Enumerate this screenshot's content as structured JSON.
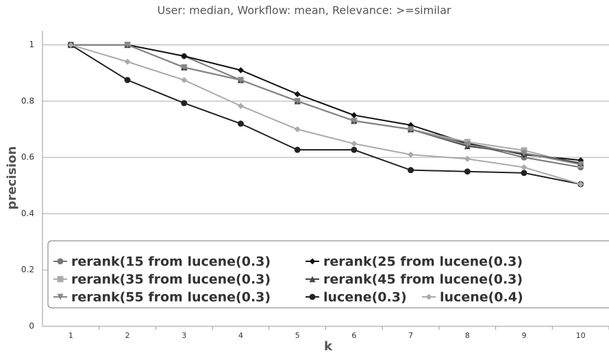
{
  "chart_data": {
    "type": "line",
    "title": "User: median, Workflow: mean, Relevance: >=similar",
    "x_label": "k",
    "y_label": "precision",
    "categories": [
      "1",
      "2",
      "3",
      "4",
      "5",
      "6",
      "7",
      "8",
      "9",
      "10"
    ],
    "ylim": [
      0,
      1.05
    ],
    "yticks": [
      0,
      0.2,
      0.4,
      0.6,
      0.8,
      1
    ],
    "grid": true,
    "series": [
      {
        "name": "rerank(15 from lucene(0.3)",
        "color": "#777777",
        "marker": "circle",
        "values": [
          1,
          1,
          0.96,
          0.875,
          0.8,
          0.73,
          0.7,
          0.65,
          0.6,
          0.565
        ]
      },
      {
        "name": "rerank(25 from lucene(0.3)",
        "color": "#111111",
        "marker": "diamond",
        "values": [
          1,
          1,
          0.96,
          0.91,
          0.825,
          0.75,
          0.715,
          0.65,
          0.61,
          0.59
        ]
      },
      {
        "name": "rerank(35 from lucene(0.3)",
        "color": "#aaaaaa",
        "marker": "square",
        "values": [
          1,
          1,
          0.92,
          0.875,
          0.8,
          0.73,
          0.7,
          0.655,
          0.625,
          0.575
        ]
      },
      {
        "name": "rerank(45 from lucene(0.3)",
        "color": "#444444",
        "marker": "triangle",
        "values": [
          1,
          1,
          0.92,
          0.875,
          0.8,
          0.73,
          0.7,
          0.64,
          0.615,
          0.58
        ]
      },
      {
        "name": "rerank(55 from lucene(0.3)",
        "color": "#888888",
        "marker": "triangle-down",
        "values": [
          1,
          1,
          0.92,
          0.875,
          0.8,
          0.73,
          0.7,
          0.645,
          0.615,
          0.575
        ]
      },
      {
        "name": "lucene(0.3)",
        "color": "#222222",
        "marker": "circle",
        "values": [
          1,
          0.875,
          0.793,
          0.72,
          0.627,
          0.627,
          0.555,
          0.55,
          0.545,
          0.505
        ]
      },
      {
        "name": "lucene(0.4)",
        "color": "#aaaaaa",
        "marker": "diamond",
        "values": [
          1,
          0.94,
          0.875,
          0.783,
          0.7,
          0.649,
          0.61,
          0.595,
          0.565,
          0.505
        ]
      }
    ]
  }
}
